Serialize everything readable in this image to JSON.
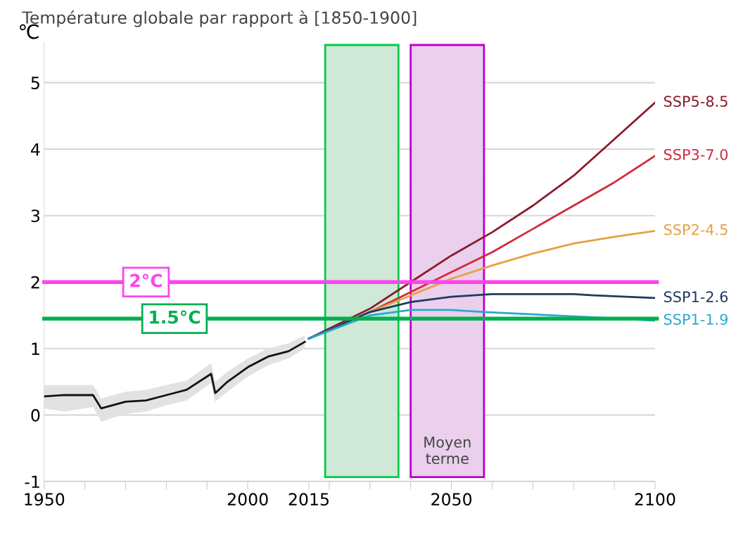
{
  "chart_data": {
    "type": "line",
    "title": "Température globale par rapport à [1850-1900]",
    "ylabel": "℃",
    "xlim": [
      1950,
      2100
    ],
    "ylim": [
      -1,
      5.6
    ],
    "xticks": [
      1950,
      {
        "value": 1960,
        "label": null
      },
      {
        "value": 1970,
        "label": null
      },
      {
        "value": 1980,
        "label": null
      },
      {
        "value": 1990,
        "label": null
      },
      2000,
      2015,
      {
        "value": 2020,
        "label": null
      },
      {
        "value": 2030,
        "label": null
      },
      {
        "value": 2040,
        "label": null
      },
      2050,
      {
        "value": 2060,
        "label": null
      },
      {
        "value": 2070,
        "label": null
      },
      {
        "value": 2080,
        "label": null
      },
      {
        "value": 2090,
        "label": null
      },
      2100
    ],
    "yticks": [
      -1,
      0,
      1,
      2,
      3,
      4,
      5
    ],
    "grid": "y",
    "line_style": "solid",
    "marker": "none",
    "series": [
      {
        "color": "#111111",
        "x": [
          1950,
          1955,
          1962,
          1964,
          1970,
          1975,
          1980,
          1985,
          1991,
          1992,
          1995,
          2000,
          2005,
          2010,
          2014
        ],
        "values": [
          0.28,
          0.3,
          0.3,
          0.1,
          0.2,
          0.22,
          0.3,
          0.38,
          0.62,
          0.33,
          0.5,
          0.72,
          0.88,
          0.96,
          1.1
        ],
        "lower": [
          0.1,
          0.05,
          0.12,
          -0.1,
          0.02,
          0.05,
          0.15,
          0.22,
          0.48,
          0.2,
          0.35,
          0.58,
          0.75,
          0.85,
          1.0
        ],
        "upper": [
          0.45,
          0.45,
          0.45,
          0.25,
          0.35,
          0.38,
          0.45,
          0.52,
          0.78,
          0.5,
          0.65,
          0.85,
          1.0,
          1.08,
          1.2
        ]
      },
      {
        "name": "SSP5-8.5",
        "color": "#8b1a2a",
        "x": [
          2015,
          2030,
          2040,
          2050,
          2060,
          2070,
          2080,
          2090,
          2100
        ],
        "values": [
          1.15,
          1.6,
          2.0,
          2.4,
          2.75,
          3.15,
          3.6,
          4.15,
          4.7
        ]
      },
      {
        "name": "SSP3-7.0",
        "color": "#d22a3c",
        "x": [
          2015,
          2030,
          2040,
          2050,
          2060,
          2070,
          2080,
          2090,
          2100
        ],
        "values": [
          1.15,
          1.55,
          1.85,
          2.15,
          2.45,
          2.8,
          3.15,
          3.5,
          3.9
        ]
      },
      {
        "name": "SSP2-4.5",
        "color": "#e8a040",
        "x": [
          2015,
          2030,
          2040,
          2050,
          2060,
          2070,
          2080,
          2090,
          2100
        ],
        "values": [
          1.15,
          1.55,
          1.8,
          2.05,
          2.25,
          2.43,
          2.58,
          2.68,
          2.77
        ]
      },
      {
        "name": "SSP1-2.6",
        "color": "#1f3a5f",
        "x": [
          2015,
          2030,
          2040,
          2050,
          2060,
          2080,
          2085,
          2100
        ],
        "values": [
          1.15,
          1.55,
          1.7,
          1.78,
          1.82,
          1.82,
          1.8,
          1.76
        ]
      },
      {
        "name": "SSP1-1.9",
        "color": "#2aa8d0",
        "x": [
          2015,
          2030,
          2040,
          2050,
          2058,
          2075,
          2085,
          2100
        ],
        "values": [
          1.15,
          1.5,
          1.58,
          1.58,
          1.55,
          1.5,
          1.47,
          1.42
        ]
      }
    ],
    "bands": [
      {
        "axis": "x",
        "from": 2019,
        "to": 2037,
        "label": null,
        "color": "#cfe8d8"
      },
      {
        "axis": "x",
        "from": 2040,
        "to": 2058,
        "label": "Moyen terme",
        "color": "#ead0ec"
      }
    ],
    "ref_lines": [
      {
        "axis": "y",
        "value": 2.0,
        "label": "2°C",
        "color": "#ff44ee",
        "line_style": "solid"
      },
      {
        "axis": "y",
        "value": 1.45,
        "label": "1.5°C",
        "color": "#00b050",
        "line_style": "solid"
      }
    ]
  }
}
